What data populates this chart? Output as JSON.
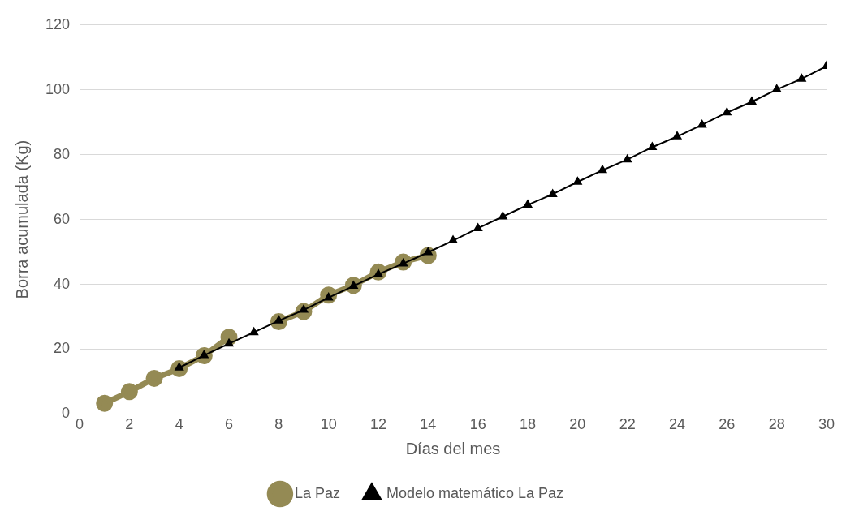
{
  "chart_data": {
    "type": "line",
    "xlabel": "Días del mes",
    "ylabel": "Borra acumulada (Kg)",
    "x": [
      1,
      2,
      3,
      4,
      5,
      6,
      7,
      8,
      9,
      10,
      11,
      12,
      13,
      14,
      15,
      16,
      17,
      18,
      19,
      20,
      21,
      22,
      23,
      24,
      25,
      26,
      27,
      28,
      29,
      30
    ],
    "series": [
      {
        "name": "La Paz",
        "color": "#948a54",
        "marker": "circle",
        "values": [
          3.3,
          6.9,
          11,
          14,
          18,
          23.7,
          null,
          28.5,
          31.6,
          36.7,
          39.7,
          43.8,
          46.9,
          48.9,
          null,
          null,
          null,
          null,
          null,
          null,
          null,
          null,
          null,
          null,
          null,
          null,
          null,
          null,
          null,
          null
        ]
      },
      {
        "name": "Modelo matemático La Paz",
        "color": "#000000",
        "marker": "triangle",
        "values": [
          null,
          null,
          null,
          14.3,
          18.1,
          21.7,
          25.2,
          28.8,
          32.1,
          35.9,
          39.5,
          43.1,
          46.4,
          49.9,
          53.5,
          57.3,
          60.9,
          64.5,
          67.8,
          71.6,
          75.2,
          78.5,
          82.3,
          85.6,
          89.2,
          93,
          96.3,
          100.1,
          103.4,
          107.3
        ]
      }
    ],
    "xlim": [
      0,
      30
    ],
    "xticks": [
      0,
      2,
      4,
      6,
      8,
      10,
      12,
      14,
      16,
      18,
      20,
      22,
      24,
      26,
      28,
      30
    ],
    "ylim": [
      0,
      120
    ],
    "yticks": [
      0,
      20,
      40,
      60,
      80,
      100,
      120
    ],
    "grid": "y",
    "legend": "bottom"
  }
}
